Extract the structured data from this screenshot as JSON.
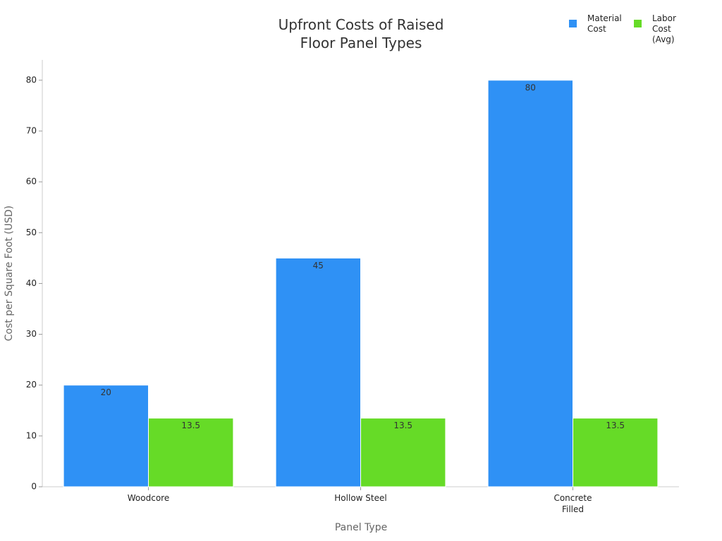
{
  "chart_data": {
    "type": "bar",
    "title": "Upfront Costs of Raised Floor Panel Types",
    "x_label": "Panel Type",
    "y_label": "Cost per Square Foot (USD)",
    "categories": [
      "Woodcore",
      "Hollow Steel",
      "Concrete Filled"
    ],
    "series": [
      {
        "name": "Material Cost",
        "color": "#2f91f5",
        "values": [
          20,
          45,
          80
        ]
      },
      {
        "name": "Labor Cost (Avg)",
        "color": "#66db27",
        "values": [
          13.5,
          13.5,
          13.5
        ]
      }
    ],
    "ylim": [
      0,
      84
    ],
    "yticks": [
      0,
      10,
      20,
      30,
      40,
      50,
      60,
      70,
      80
    ],
    "grid": false,
    "legend": "top-right"
  }
}
